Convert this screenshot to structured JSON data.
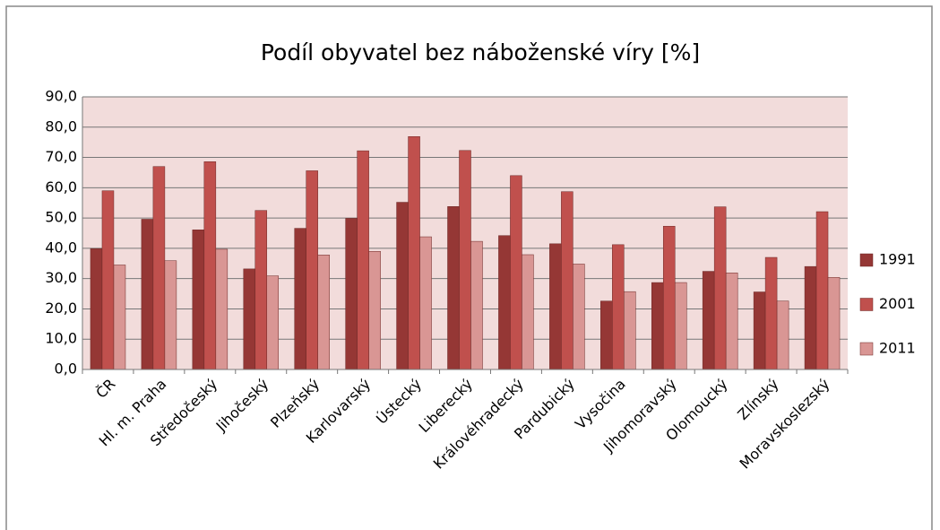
{
  "chart_data": {
    "type": "bar",
    "title": "Podíl obyvatel bez náboženské víry [%]",
    "categories": [
      "ČR",
      "Hl. m. Praha",
      "Středočeský",
      "Jihočeský",
      "Plzeňský",
      "Karlovarský",
      "Ústecký",
      "Liberecký",
      "Královéhradecký",
      "Pardubický",
      "Vysočina",
      "Jihomoravský",
      "Olomoucký",
      "Zlínský",
      "Moravskoslezský"
    ],
    "series": [
      {
        "name": "1991",
        "color": "#953735",
        "values": [
          39.9,
          49.6,
          46.1,
          33.2,
          46.6,
          49.9,
          55.2,
          53.8,
          44.2,
          41.5,
          22.6,
          28.7,
          32.4,
          25.6,
          34.0
        ]
      },
      {
        "name": "2001",
        "color": "#c0504d",
        "values": [
          59.0,
          67.0,
          68.6,
          52.5,
          65.6,
          72.2,
          76.9,
          72.3,
          64.0,
          58.7,
          41.2,
          47.3,
          53.7,
          37.0,
          52.1
        ]
      },
      {
        "name": "2011",
        "color": "#d99694",
        "values": [
          34.5,
          35.9,
          39.7,
          30.9,
          37.8,
          39.0,
          43.8,
          42.3,
          37.9,
          34.8,
          25.7,
          28.7,
          31.9,
          22.6,
          30.4
        ]
      }
    ],
    "ylim": [
      0,
      90
    ],
    "yticks": [
      {
        "value": 0,
        "label": "0,0"
      },
      {
        "value": 10,
        "label": "10,0"
      },
      {
        "value": 20,
        "label": "20,0"
      },
      {
        "value": 30,
        "label": "30,0"
      },
      {
        "value": 40,
        "label": "40,0"
      },
      {
        "value": 50,
        "label": "50,0"
      },
      {
        "value": 60,
        "label": "60,0"
      },
      {
        "value": 70,
        "label": "70,0"
      },
      {
        "value": 80,
        "label": "80,0"
      },
      {
        "value": 90,
        "label": "90,0"
      }
    ],
    "grid": true,
    "legend": "right",
    "plot_background": "#f2dcdb"
  }
}
